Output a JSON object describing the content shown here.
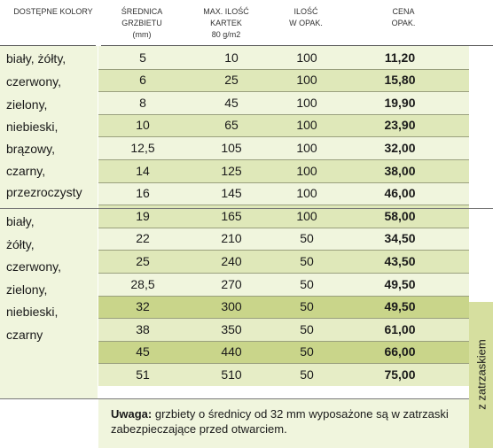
{
  "header": {
    "colors": "DOSTĘPNE KOLORY",
    "diameter_l1": "ŚREDNICA",
    "diameter_l2": "GRZBIETU",
    "diameter_l3": "(mm)",
    "max_l1": "MAX. ILOŚĆ",
    "max_l2": "KARTEK",
    "max_l3": "80 g/m2",
    "qty_l1": "ILOŚĆ",
    "qty_l2": "W OPAK.",
    "price_l1": "CENA",
    "price_l2": "OPAK."
  },
  "groups": [
    {
      "lines": [
        "biały, żółty,",
        "czerwony,",
        "zielony,",
        "niebieski,",
        "brązowy,",
        "czarny,",
        "przezroczysty"
      ]
    },
    {
      "lines": [
        "biały,",
        "żółty,",
        "czerwony,",
        "zielony,",
        "niebieski,",
        "czarny"
      ]
    }
  ],
  "rows": [
    {
      "diameter": "5",
      "max_sheets": "10",
      "qty": "100",
      "price": "11,20",
      "tone": "light",
      "clasp": false
    },
    {
      "diameter": "6",
      "max_sheets": "25",
      "qty": "100",
      "price": "15,80",
      "tone": "mid",
      "clasp": false
    },
    {
      "diameter": "8",
      "max_sheets": "45",
      "qty": "100",
      "price": "19,90",
      "tone": "light",
      "clasp": false
    },
    {
      "diameter": "10",
      "max_sheets": "65",
      "qty": "100",
      "price": "23,90",
      "tone": "mid",
      "clasp": false
    },
    {
      "diameter": "12,5",
      "max_sheets": "105",
      "qty": "100",
      "price": "32,00",
      "tone": "light",
      "clasp": false
    },
    {
      "diameter": "14",
      "max_sheets": "125",
      "qty": "100",
      "price": "38,00",
      "tone": "mid",
      "clasp": false
    },
    {
      "diameter": "16",
      "max_sheets": "145",
      "qty": "100",
      "price": "46,00",
      "tone": "light",
      "clasp": false
    },
    {
      "diameter": "19",
      "max_sheets": "165",
      "qty": "100",
      "price": "58,00",
      "tone": "mid",
      "clasp": false
    },
    {
      "diameter": "22",
      "max_sheets": "210",
      "qty": "50",
      "price": "34,50",
      "tone": "light",
      "clasp": false
    },
    {
      "diameter": "25",
      "max_sheets": "240",
      "qty": "50",
      "price": "43,50",
      "tone": "mid",
      "clasp": false
    },
    {
      "diameter": "28,5",
      "max_sheets": "270",
      "qty": "50",
      "price": "49,50",
      "tone": "light",
      "clasp": false
    },
    {
      "diameter": "32",
      "max_sheets": "300",
      "qty": "50",
      "price": "49,50",
      "tone": "mid",
      "clasp": true
    },
    {
      "diameter": "38",
      "max_sheets": "350",
      "qty": "50",
      "price": "61,00",
      "tone": "light",
      "clasp": true
    },
    {
      "diameter": "45",
      "max_sheets": "440",
      "qty": "50",
      "price": "66,00",
      "tone": "mid",
      "clasp": true
    },
    {
      "diameter": "51",
      "max_sheets": "510",
      "qty": "50",
      "price": "75,00",
      "tone": "light",
      "clasp": true
    }
  ],
  "palette": {
    "light": "#f0f5dd",
    "mid": "#dfe8b9",
    "clasp_light": "#e6edc6",
    "clasp_mid": "#c9d58a"
  },
  "side_label": "z zatrzaskiem",
  "note": {
    "label": "Uwaga:",
    "text": " grzbiety o średnicy od 32 mm wyposażone są w zatrzaski zabezpieczające przed otwarciem."
  }
}
